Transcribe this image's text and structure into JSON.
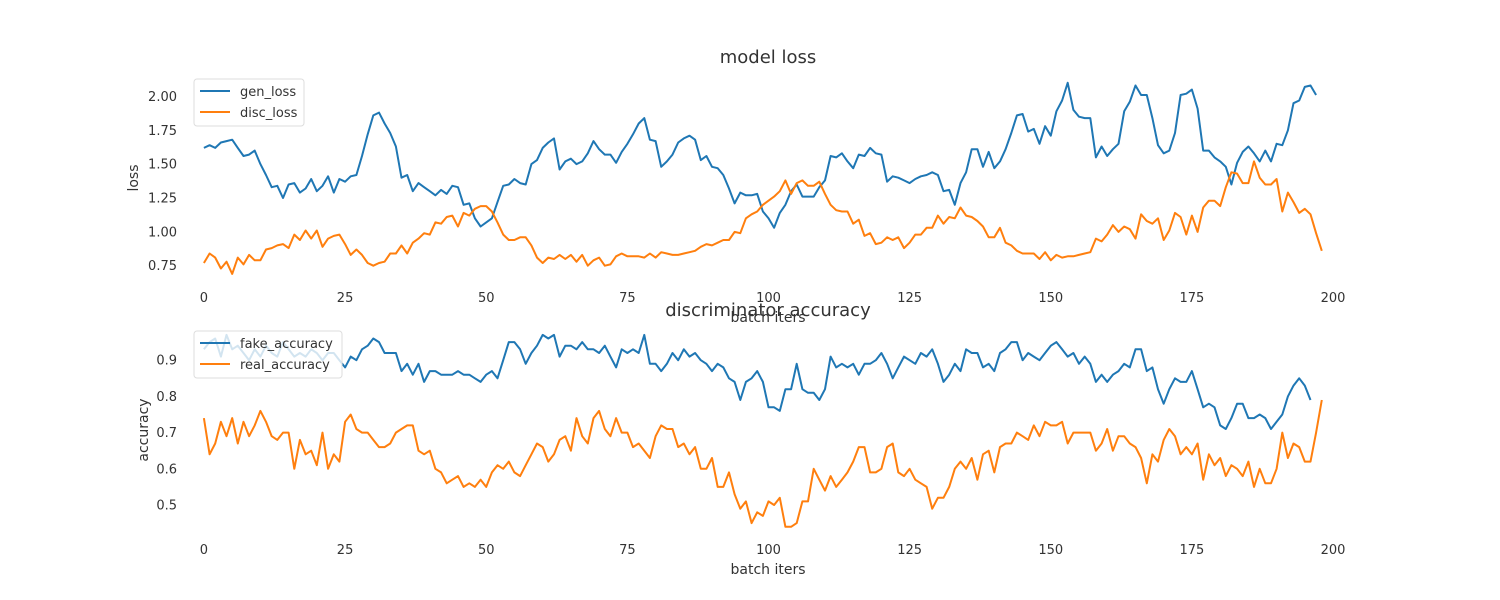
{
  "chart_data": [
    {
      "type": "line",
      "title": "model loss",
      "xlabel": "batch iters",
      "ylabel": "loss",
      "xlim": [
        -3,
        203
      ],
      "ylim": [
        0.63,
        2.18
      ],
      "xticks": [
        0,
        25,
        50,
        75,
        100,
        125,
        150,
        175,
        200
      ],
      "yticks": [
        0.75,
        1.0,
        1.25,
        1.5,
        1.75,
        2.0
      ],
      "ytick_labels": [
        "0.75",
        "1.00",
        "1.25",
        "1.50",
        "1.75",
        "2.00"
      ],
      "grid": false,
      "legend_position": "upper left",
      "x_step": 1,
      "series": [
        {
          "name": "gen_loss",
          "color": "#1f77b4",
          "values": [
            1.62,
            1.64,
            1.62,
            1.66,
            1.67,
            1.68,
            1.62,
            1.56,
            1.57,
            1.6,
            1.5,
            1.42,
            1.33,
            1.34,
            1.25,
            1.35,
            1.36,
            1.29,
            1.32,
            1.39,
            1.3,
            1.34,
            1.41,
            1.29,
            1.39,
            1.37,
            1.41,
            1.42,
            1.56,
            1.72,
            1.86,
            1.88,
            1.8,
            1.73,
            1.63,
            1.4,
            1.42,
            1.3,
            1.36,
            1.33,
            1.3,
            1.27,
            1.31,
            1.28,
            1.34,
            1.33,
            1.2,
            1.21,
            1.1,
            1.04,
            1.07,
            1.1,
            1.22,
            1.34,
            1.35,
            1.39,
            1.36,
            1.35,
            1.5,
            1.53,
            1.62,
            1.66,
            1.69,
            1.46,
            1.52,
            1.54,
            1.5,
            1.52,
            1.58,
            1.67,
            1.61,
            1.57,
            1.57,
            1.51,
            1.59,
            1.65,
            1.72,
            1.8,
            1.84,
            1.68,
            1.67,
            1.48,
            1.52,
            1.57,
            1.66,
            1.69,
            1.71,
            1.68,
            1.53,
            1.56,
            1.48,
            1.47,
            1.42,
            1.32,
            1.21,
            1.29,
            1.27,
            1.27,
            1.28,
            1.15,
            1.1,
            1.03,
            1.14,
            1.2,
            1.3,
            1.35,
            1.26,
            1.26,
            1.26,
            1.33,
            1.38,
            1.56,
            1.55,
            1.58,
            1.52,
            1.47,
            1.57,
            1.56,
            1.62,
            1.58,
            1.57,
            1.37,
            1.41,
            1.4,
            1.38,
            1.36,
            1.39,
            1.41,
            1.42,
            1.44,
            1.42,
            1.3,
            1.31,
            1.2,
            1.36,
            1.44,
            1.61,
            1.61,
            1.48,
            1.59,
            1.47,
            1.52,
            1.61,
            1.73,
            1.86,
            1.87,
            1.74,
            1.76,
            1.65,
            1.78,
            1.71,
            1.89,
            1.97,
            2.1,
            1.9,
            1.85,
            1.84,
            1.84,
            1.55,
            1.63,
            1.56,
            1.61,
            1.65,
            1.89,
            1.96,
            2.08,
            2.01,
            2.01,
            1.84,
            1.64,
            1.58,
            1.6,
            1.73,
            2.01,
            2.02,
            2.05,
            1.91,
            1.6,
            1.6,
            1.55,
            1.52,
            1.48,
            1.35,
            1.51,
            1.59,
            1.63,
            1.58,
            1.52,
            1.6,
            1.52,
            1.65,
            1.64,
            1.75,
            1.95,
            1.97,
            2.07,
            2.08,
            2.01
          ]
        },
        {
          "name": "disc_loss",
          "color": "#ff7f0e",
          "values": [
            0.77,
            0.84,
            0.81,
            0.73,
            0.78,
            0.69,
            0.81,
            0.76,
            0.83,
            0.79,
            0.79,
            0.87,
            0.88,
            0.9,
            0.91,
            0.88,
            0.98,
            0.94,
            1.01,
            0.95,
            1.01,
            0.89,
            0.95,
            0.97,
            0.98,
            0.91,
            0.83,
            0.87,
            0.83,
            0.77,
            0.75,
            0.77,
            0.78,
            0.84,
            0.84,
            0.9,
            0.84,
            0.92,
            0.95,
            0.99,
            0.98,
            1.07,
            1.06,
            1.11,
            1.12,
            1.04,
            1.14,
            1.12,
            1.17,
            1.19,
            1.19,
            1.15,
            1.07,
            0.98,
            0.94,
            0.94,
            0.96,
            0.96,
            0.9,
            0.81,
            0.77,
            0.81,
            0.8,
            0.83,
            0.8,
            0.83,
            0.78,
            0.83,
            0.75,
            0.79,
            0.81,
            0.75,
            0.76,
            0.82,
            0.84,
            0.82,
            0.82,
            0.82,
            0.81,
            0.84,
            0.81,
            0.85,
            0.84,
            0.83,
            0.83,
            0.84,
            0.85,
            0.86,
            0.89,
            0.91,
            0.9,
            0.92,
            0.94,
            0.94,
            1.0,
            0.99,
            1.1,
            1.13,
            1.15,
            1.2,
            1.23,
            1.26,
            1.3,
            1.38,
            1.28,
            1.36,
            1.38,
            1.34,
            1.34,
            1.37,
            1.28,
            1.2,
            1.16,
            1.15,
            1.15,
            1.06,
            1.09,
            0.97,
            0.99,
            0.91,
            0.92,
            0.96,
            0.94,
            0.96,
            0.88,
            0.92,
            0.98,
            0.98,
            1.03,
            1.03,
            1.12,
            1.06,
            1.11,
            1.1,
            1.18,
            1.12,
            1.11,
            1.08,
            1.04,
            0.96,
            0.96,
            1.03,
            0.92,
            0.9,
            0.86,
            0.84,
            0.84,
            0.84,
            0.8,
            0.85,
            0.79,
            0.83,
            0.81,
            0.82,
            0.82,
            0.83,
            0.84,
            0.85,
            0.95,
            0.93,
            0.98,
            1.05,
            1.0,
            1.04,
            1.02,
            0.95,
            1.13,
            1.08,
            1.06,
            1.1,
            0.94,
            1.01,
            1.14,
            1.11,
            0.98,
            1.12,
            1.0,
            1.18,
            1.23,
            1.23,
            1.19,
            1.33,
            1.44,
            1.43,
            1.36,
            1.36,
            1.52,
            1.4,
            1.35,
            1.35,
            1.39,
            1.15,
            1.29,
            1.22,
            1.14,
            1.17,
            1.13,
            0.99,
            0.86
          ]
        }
      ]
    },
    {
      "type": "line",
      "title": "discriminator accuracy",
      "xlabel": "batch iters",
      "ylabel": "accuracy",
      "xlim": [
        -3,
        203
      ],
      "ylim": [
        0.42,
        1.0
      ],
      "xticks": [
        0,
        25,
        50,
        75,
        100,
        125,
        150,
        175,
        200
      ],
      "yticks": [
        0.5,
        0.6,
        0.7,
        0.8,
        0.9
      ],
      "ytick_labels": [
        "0.5",
        "0.6",
        "0.7",
        "0.8",
        "0.9"
      ],
      "grid": false,
      "legend_position": "upper left",
      "x_step": 1,
      "series": [
        {
          "name": "fake_accuracy",
          "color": "#1f77b4",
          "values": [
            0.93,
            0.95,
            0.96,
            0.91,
            0.97,
            0.93,
            0.94,
            0.92,
            0.9,
            0.93,
            0.91,
            0.94,
            0.92,
            0.91,
            0.95,
            0.93,
            0.91,
            0.92,
            0.91,
            0.93,
            0.92,
            0.9,
            0.92,
            0.92,
            0.9,
            0.88,
            0.91,
            0.9,
            0.93,
            0.94,
            0.96,
            0.95,
            0.92,
            0.92,
            0.92,
            0.87,
            0.89,
            0.86,
            0.89,
            0.84,
            0.87,
            0.87,
            0.86,
            0.86,
            0.86,
            0.87,
            0.86,
            0.86,
            0.85,
            0.84,
            0.86,
            0.87,
            0.85,
            0.9,
            0.95,
            0.95,
            0.93,
            0.89,
            0.92,
            0.94,
            0.97,
            0.96,
            0.97,
            0.91,
            0.94,
            0.94,
            0.93,
            0.95,
            0.93,
            0.93,
            0.92,
            0.94,
            0.91,
            0.88,
            0.93,
            0.92,
            0.93,
            0.92,
            0.97,
            0.89,
            0.89,
            0.87,
            0.89,
            0.92,
            0.9,
            0.93,
            0.91,
            0.92,
            0.9,
            0.89,
            0.87,
            0.89,
            0.88,
            0.85,
            0.84,
            0.79,
            0.84,
            0.85,
            0.87,
            0.84,
            0.77,
            0.77,
            0.76,
            0.82,
            0.82,
            0.89,
            0.82,
            0.81,
            0.81,
            0.79,
            0.82,
            0.91,
            0.88,
            0.89,
            0.88,
            0.89,
            0.86,
            0.89,
            0.89,
            0.9,
            0.92,
            0.89,
            0.85,
            0.88,
            0.91,
            0.9,
            0.89,
            0.92,
            0.91,
            0.93,
            0.89,
            0.84,
            0.86,
            0.89,
            0.87,
            0.93,
            0.92,
            0.92,
            0.88,
            0.89,
            0.87,
            0.92,
            0.93,
            0.95,
            0.95,
            0.9,
            0.92,
            0.91,
            0.9,
            0.92,
            0.94,
            0.95,
            0.93,
            0.91,
            0.92,
            0.89,
            0.91,
            0.89,
            0.84,
            0.86,
            0.84,
            0.86,
            0.87,
            0.89,
            0.88,
            0.93,
            0.93,
            0.87,
            0.88,
            0.82,
            0.78,
            0.82,
            0.85,
            0.84,
            0.84,
            0.87,
            0.82,
            0.77,
            0.78,
            0.77,
            0.72,
            0.71,
            0.74,
            0.78,
            0.78,
            0.74,
            0.74,
            0.75,
            0.74,
            0.71,
            0.73,
            0.75,
            0.8,
            0.83,
            0.85,
            0.83,
            0.79
          ]
        },
        {
          "name": "real_accuracy",
          "color": "#ff7f0e",
          "values": [
            0.74,
            0.64,
            0.67,
            0.73,
            0.69,
            0.74,
            0.67,
            0.73,
            0.69,
            0.72,
            0.76,
            0.73,
            0.69,
            0.68,
            0.7,
            0.7,
            0.6,
            0.68,
            0.64,
            0.65,
            0.61,
            0.7,
            0.6,
            0.64,
            0.62,
            0.73,
            0.75,
            0.71,
            0.7,
            0.7,
            0.68,
            0.66,
            0.66,
            0.67,
            0.7,
            0.71,
            0.72,
            0.72,
            0.65,
            0.64,
            0.65,
            0.6,
            0.59,
            0.56,
            0.57,
            0.58,
            0.55,
            0.56,
            0.55,
            0.57,
            0.55,
            0.59,
            0.61,
            0.6,
            0.62,
            0.59,
            0.58,
            0.61,
            0.64,
            0.67,
            0.66,
            0.62,
            0.64,
            0.68,
            0.69,
            0.65,
            0.74,
            0.69,
            0.67,
            0.74,
            0.76,
            0.71,
            0.69,
            0.74,
            0.7,
            0.7,
            0.66,
            0.67,
            0.65,
            0.63,
            0.69,
            0.72,
            0.71,
            0.71,
            0.66,
            0.67,
            0.64,
            0.66,
            0.6,
            0.6,
            0.63,
            0.55,
            0.55,
            0.59,
            0.53,
            0.49,
            0.51,
            0.45,
            0.48,
            0.47,
            0.51,
            0.5,
            0.52,
            0.44,
            0.44,
            0.45,
            0.51,
            0.51,
            0.6,
            0.57,
            0.54,
            0.58,
            0.55,
            0.57,
            0.59,
            0.62,
            0.66,
            0.66,
            0.59,
            0.59,
            0.6,
            0.66,
            0.67,
            0.59,
            0.58,
            0.6,
            0.57,
            0.56,
            0.55,
            0.49,
            0.52,
            0.52,
            0.55,
            0.6,
            0.62,
            0.6,
            0.63,
            0.57,
            0.64,
            0.65,
            0.59,
            0.66,
            0.67,
            0.67,
            0.7,
            0.69,
            0.68,
            0.72,
            0.69,
            0.73,
            0.72,
            0.72,
            0.73,
            0.67,
            0.7,
            0.7,
            0.7,
            0.7,
            0.65,
            0.67,
            0.71,
            0.65,
            0.69,
            0.69,
            0.67,
            0.66,
            0.63,
            0.56,
            0.64,
            0.62,
            0.68,
            0.71,
            0.69,
            0.64,
            0.66,
            0.64,
            0.67,
            0.57,
            0.64,
            0.61,
            0.63,
            0.58,
            0.61,
            0.6,
            0.58,
            0.62,
            0.55,
            0.6,
            0.56,
            0.56,
            0.6,
            0.7,
            0.63,
            0.67,
            0.66,
            0.62,
            0.62,
            0.7,
            0.79
          ]
        }
      ]
    }
  ]
}
